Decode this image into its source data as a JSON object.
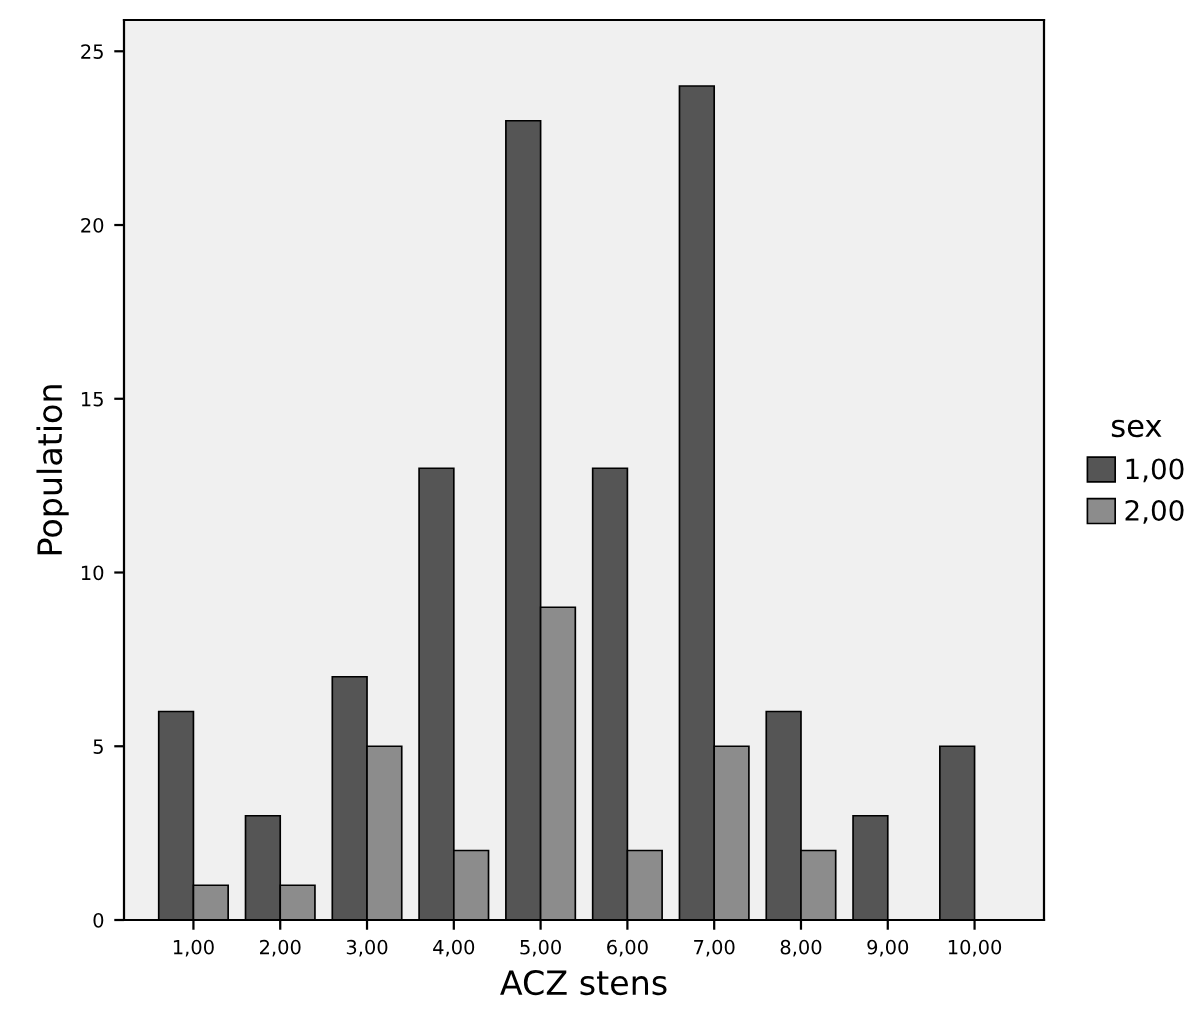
{
  "chart_data": {
    "type": "bar",
    "xlabel": "ACZ stens",
    "ylabel": "Population",
    "legend_title": "sex",
    "categories": [
      "1,00",
      "2,00",
      "3,00",
      "4,00",
      "5,00",
      "6,00",
      "7,00",
      "8,00",
      "9,00",
      "10,00"
    ],
    "series": [
      {
        "name": "1,00",
        "color": "#555555",
        "values": [
          6,
          3,
          7,
          13,
          23,
          13,
          24,
          6,
          3,
          5
        ]
      },
      {
        "name": "2,00",
        "color": "#8c8c8c",
        "values": [
          1,
          1,
          5,
          2,
          9,
          2,
          5,
          2,
          null,
          null
        ]
      }
    ],
    "ylim": [
      0,
      25.9
    ],
    "yticks": [
      0,
      5,
      10,
      15,
      20,
      25
    ],
    "grid": false,
    "legend": "right"
  }
}
